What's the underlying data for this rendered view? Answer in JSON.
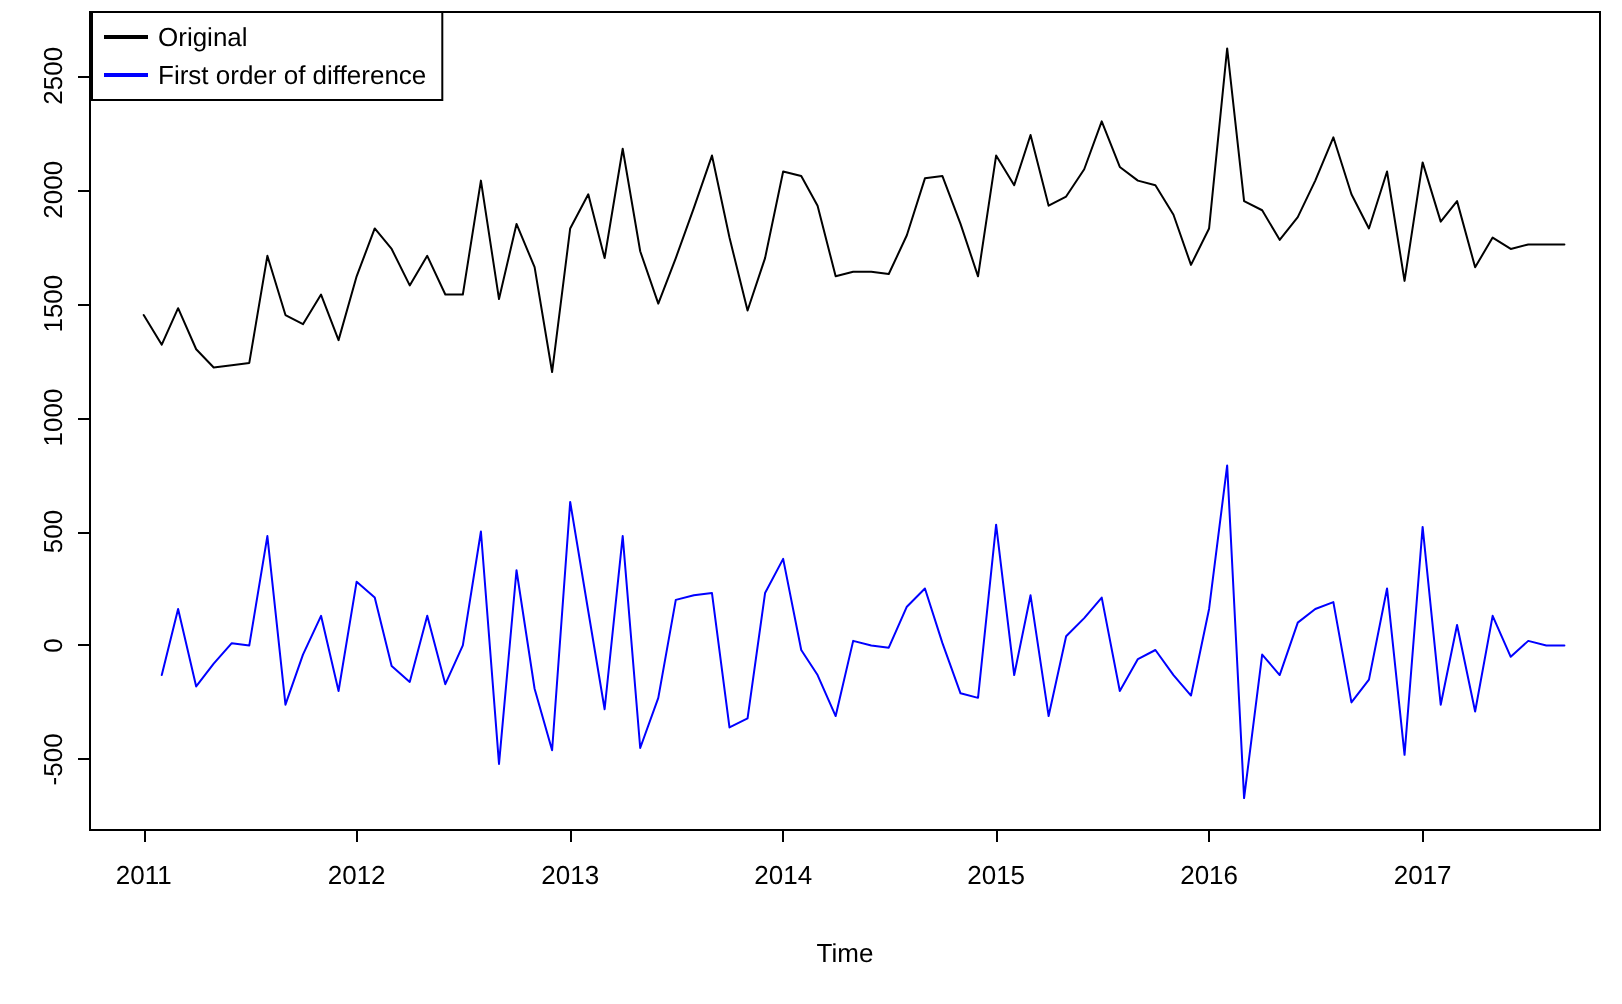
{
  "chart_data": {
    "type": "line",
    "xlabel": "Time",
    "x": [
      "2011-01",
      "2011-02",
      "2011-03",
      "2011-04",
      "2011-05",
      "2011-06",
      "2011-07",
      "2011-08",
      "2011-09",
      "2011-10",
      "2011-11",
      "2011-12",
      "2012-01",
      "2012-02",
      "2012-03",
      "2012-04",
      "2012-05",
      "2012-06",
      "2012-07",
      "2012-08",
      "2012-09",
      "2012-10",
      "2012-11",
      "2012-12",
      "2013-01",
      "2013-02",
      "2013-03",
      "2013-04",
      "2013-05",
      "2013-06",
      "2013-07",
      "2013-08",
      "2013-09",
      "2013-10",
      "2013-11",
      "2013-12",
      "2014-01",
      "2014-02",
      "2014-03",
      "2014-04",
      "2014-05",
      "2014-06",
      "2014-07",
      "2014-08",
      "2014-09",
      "2014-10",
      "2014-11",
      "2014-12",
      "2015-01",
      "2015-02",
      "2015-03",
      "2015-04",
      "2015-05",
      "2015-06",
      "2015-07",
      "2015-08",
      "2015-09",
      "2015-10",
      "2015-11",
      "2015-12",
      "2016-01",
      "2016-02",
      "2016-03",
      "2016-04",
      "2016-05",
      "2016-06",
      "2016-07",
      "2016-08",
      "2016-09",
      "2016-10",
      "2016-11",
      "2016-12",
      "2017-01",
      "2017-02",
      "2017-03",
      "2017-04",
      "2017-05",
      "2017-06",
      "2017-07",
      "2017-08",
      "2017-09"
    ],
    "series": [
      {
        "name": "Original",
        "color": "#000000",
        "values": [
          1450,
          1320,
          1480,
          1300,
          1220,
          1230,
          1240,
          1710,
          1450,
          1410,
          1540,
          1340,
          1620,
          1830,
          1740,
          1580,
          1710,
          1540,
          1540,
          2040,
          1520,
          1850,
          1660,
          1200,
          1830,
          1980,
          1700,
          2180,
          1730,
          1500,
          1700,
          1920,
          2150,
          1790,
          1470,
          1700,
          2080,
          2060,
          1930,
          1620,
          1640,
          1640,
          1630,
          1800,
          2050,
          2060,
          1850,
          1620,
          2150,
          2020,
          2240,
          1930,
          1970,
          2090,
          2300,
          2100,
          2040,
          2020,
          1890,
          1670,
          1830,
          2620,
          1950,
          1910,
          1780,
          1880,
          2040,
          2230,
          1980,
          1830,
          2080,
          1600,
          2120,
          1860,
          1950,
          1660,
          1790,
          1740,
          1760,
          1760,
          1760
        ]
      },
      {
        "name": "First order of difference",
        "color": "#0000ff",
        "values": [
          null,
          -130,
          160,
          -180,
          -80,
          10,
          0,
          480,
          -260,
          -40,
          130,
          -200,
          280,
          210,
          -90,
          -160,
          130,
          -170,
          0,
          500,
          -520,
          330,
          -190,
          -460,
          630,
          150,
          -280,
          480,
          -450,
          -230,
          200,
          220,
          230,
          -360,
          -320,
          230,
          380,
          -20,
          -130,
          -310,
          20,
          0,
          -10,
          170,
          250,
          10,
          -210,
          -230,
          530,
          -130,
          220,
          -310,
          40,
          120,
          210,
          -200,
          -60,
          -20,
          -130,
          -220,
          160,
          790,
          -670,
          -40,
          -130,
          100,
          160,
          190,
          -250,
          -150,
          250,
          -480,
          520,
          -260,
          90,
          -290,
          130,
          -50,
          20,
          0,
          0
        ]
      }
    ],
    "xlim": [
      "2010-10",
      "2017-11"
    ],
    "xticks": [
      "2011",
      "2012",
      "2013",
      "2014",
      "2015",
      "2016",
      "2017"
    ],
    "ylim": [
      -810,
      2780
    ],
    "yticks": [
      -500,
      0,
      500,
      1000,
      1500,
      2000,
      2500
    ],
    "grid": false,
    "legend": "top left",
    "marker": "none",
    "line_style": "solid"
  }
}
